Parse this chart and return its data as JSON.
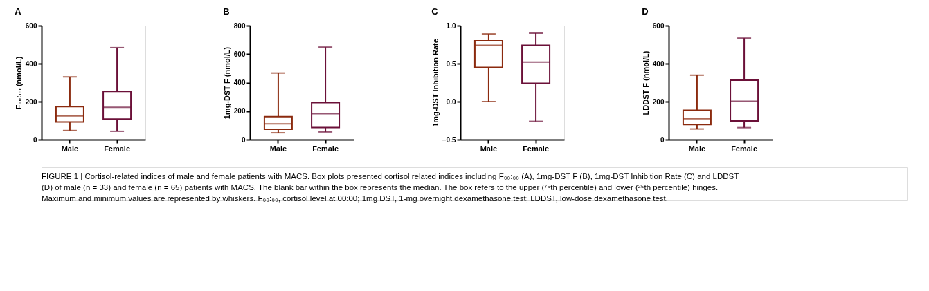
{
  "chart_data": [
    {
      "type": "box",
      "title": "A",
      "ylabel": "F₀₀:₀₀ (nmol/L)",
      "categories": [
        "Male",
        "Female"
      ],
      "colors": [
        "#8b2a0e",
        "#6b1038"
      ],
      "boxes": [
        {
          "low": 48,
          "q1": 93,
          "median": 125,
          "q3": 174,
          "high": 330
        },
        {
          "low": 44,
          "q1": 108,
          "median": 170,
          "q3": 254,
          "high": 484
        }
      ],
      "ylim": [
        0,
        600
      ],
      "yticks": [
        0,
        200,
        400,
        600
      ],
      "grid": false,
      "annotations": [
        "FIGURE 1 | Cortisol-related indices of male and female patients with MACS. Box plots presented cortisol related indices including F₀₀:₀₀ (A), 1mg-DST F (B), 1mg-DST Inhibition Rate (C) and LDDST (D) of male (n = 33) and female (n = 65) patients with MACS. The blank bar within the box represents the median. The box refers to the upper (⁷⁵th percentile) and lower (²⁵th percentile) hinges. Maximum and minimum values are represented by whiskers. F₀₀:₀₀, cortisol level at 00:00; 1mg DST, 1-mg overnight dexamethasone test; LDDST, low-dose dexamethasone test."
      ]
    },
    {
      "type": "box",
      "title": "B",
      "ylabel": "1mg-DST F (nmol/L)",
      "categories": [
        "Male",
        "Female"
      ],
      "colors": [
        "#8b2a0e",
        "#6b1038"
      ],
      "boxes": [
        {
          "low": 48,
          "q1": 73,
          "median": 110,
          "q3": 161,
          "high": 467
        },
        {
          "low": 54,
          "q1": 85,
          "median": 182,
          "q3": 259,
          "high": 649
        }
      ],
      "ylim": [
        0,
        800
      ],
      "yticks": [
        0,
        200,
        400,
        600,
        800
      ],
      "grid": false
    },
    {
      "type": "box",
      "title": "C",
      "ylabel": "1mg-DST Inhibition Rate",
      "categories": [
        "Male",
        "Female"
      ],
      "colors": [
        "#8b2a0e",
        "#6b1038"
      ],
      "boxes": [
        {
          "low": 0.0,
          "q1": 0.45,
          "median": 0.74,
          "q3": 0.8,
          "high": 0.89
        },
        {
          "low": -0.26,
          "q1": 0.24,
          "median": 0.52,
          "q3": 0.74,
          "high": 0.9
        }
      ],
      "ylim": [
        -0.5,
        1.0
      ],
      "yticks": [
        -0.5,
        {
          "value": 0,
          "label": "0.0"
        },
        0.5,
        {
          "value": 1,
          "label": "1.0"
        }
      ],
      "grid": false
    },
    {
      "type": "box",
      "title": "D",
      "ylabel": "LDDST F (nmol/L)",
      "categories": [
        "Male",
        "Female"
      ],
      "colors": [
        "#8b2a0e",
        "#6b1038"
      ],
      "boxes": [
        {
          "low": 56,
          "q1": 79,
          "median": 110,
          "q3": 155,
          "high": 339
        },
        {
          "low": 63,
          "q1": 98,
          "median": 202,
          "q3": 313,
          "high": 534
        }
      ],
      "ylim": [
        0,
        600
      ],
      "yticks": [
        0,
        200,
        400,
        600
      ],
      "grid": false
    }
  ]
}
